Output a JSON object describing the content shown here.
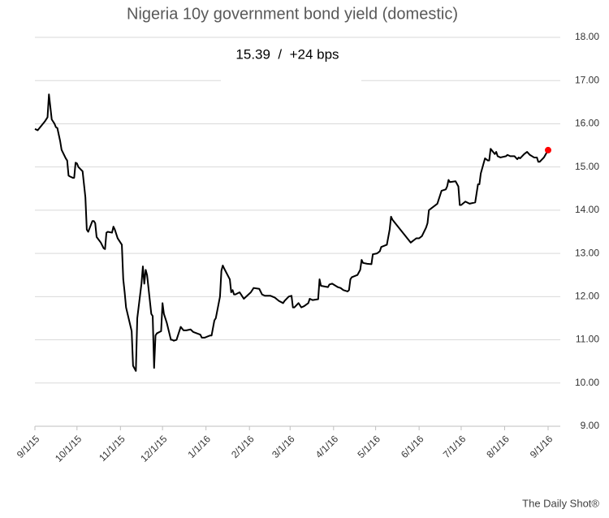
{
  "chart_data": {
    "type": "line",
    "title": "Nigeria 10y government bond yield (domestic)",
    "annotation": "15.39  /  +24 bps",
    "source": "The Daily Shot®",
    "color": "#000000",
    "highlight_last": true,
    "highlight_color": "#ff0000",
    "grid": true,
    "y_axis_side": "right",
    "xlim": [
      "2015-09-01",
      "2016-09-01"
    ],
    "xticks": [
      {
        "value": "2015-09-01",
        "label": "9/1/15"
      },
      {
        "value": "2015-10-01",
        "label": "10/1/15"
      },
      {
        "value": "2015-11-01",
        "label": "11/1/15"
      },
      {
        "value": "2015-12-01",
        "label": "12/1/15"
      },
      {
        "value": "2016-01-01",
        "label": "1/1/16"
      },
      {
        "value": "2016-02-01",
        "label": "2/1/16"
      },
      {
        "value": "2016-03-01",
        "label": "3/1/16"
      },
      {
        "value": "2016-04-01",
        "label": "4/1/16"
      },
      {
        "value": "2016-05-01",
        "label": "5/1/16"
      },
      {
        "value": "2016-06-01",
        "label": "6/1/16"
      },
      {
        "value": "2016-07-01",
        "label": "7/1/16"
      },
      {
        "value": "2016-08-01",
        "label": "8/1/16"
      },
      {
        "value": "2016-09-01",
        "label": "9/1/16"
      }
    ],
    "ylim": [
      9,
      18
    ],
    "yticks": [
      {
        "value": 9,
        "label": "9.00"
      },
      {
        "value": 10,
        "label": "10.00"
      },
      {
        "value": 11,
        "label": "11.00"
      },
      {
        "value": 12,
        "label": "12.00"
      },
      {
        "value": 13,
        "label": "13.00"
      },
      {
        "value": 14,
        "label": "14.00"
      },
      {
        "value": 15,
        "label": "15.00"
      },
      {
        "value": 16,
        "label": "16.00"
      },
      {
        "value": 17,
        "label": "17.00"
      },
      {
        "value": 18,
        "label": "18.00"
      }
    ],
    "x": [
      "2015-09-01",
      "2015-09-03",
      "2015-09-08",
      "2015-09-10",
      "2015-09-11",
      "2015-09-13",
      "2015-09-15",
      "2015-09-16",
      "2015-09-17",
      "2015-09-19",
      "2015-09-20",
      "2015-09-23",
      "2015-09-24",
      "2015-09-25",
      "2015-09-26",
      "2015-09-28",
      "2015-09-29",
      "2015-09-30",
      "2015-10-01",
      "2015-10-02",
      "2015-10-05",
      "2015-10-07",
      "2015-10-08",
      "2015-10-09",
      "2015-10-12",
      "2015-10-13",
      "2015-10-14",
      "2015-10-15",
      "2015-10-18",
      "2015-10-20",
      "2015-10-21",
      "2015-10-22",
      "2015-10-23",
      "2015-10-26",
      "2015-10-27",
      "2015-10-28",
      "2015-10-30",
      "2015-11-02",
      "2015-11-03",
      "2015-11-04",
      "2015-11-05",
      "2015-11-09",
      "2015-11-10",
      "2015-11-12",
      "2015-11-13",
      "2015-11-16",
      "2015-11-17",
      "2015-11-18",
      "2015-11-19",
      "2015-11-20",
      "2015-11-23",
      "2015-11-24",
      "2015-11-25",
      "2015-11-26",
      "2015-11-27",
      "2015-11-30",
      "2015-12-01",
      "2015-12-02",
      "2015-12-04",
      "2015-12-07",
      "2015-12-08",
      "2015-12-09",
      "2015-12-11",
      "2015-12-14",
      "2015-12-16",
      "2015-12-18",
      "2015-12-21",
      "2015-12-23",
      "2015-12-28",
      "2015-12-29",
      "2015-12-31",
      "2016-01-04",
      "2016-01-05",
      "2016-01-07",
      "2016-01-08",
      "2016-01-11",
      "2016-01-12",
      "2016-01-13",
      "2016-01-14",
      "2016-01-18",
      "2016-01-19",
      "2016-01-20",
      "2016-01-21",
      "2016-01-22",
      "2016-01-25",
      "2016-01-27",
      "2016-01-28",
      "2016-02-02",
      "2016-02-04",
      "2016-02-08",
      "2016-02-10",
      "2016-02-12",
      "2016-02-16",
      "2016-02-19",
      "2016-02-22",
      "2016-02-25",
      "2016-02-26",
      "2016-02-29",
      "2016-03-02",
      "2016-03-03",
      "2016-03-04",
      "2016-03-07",
      "2016-03-09",
      "2016-03-11",
      "2016-03-14",
      "2016-03-15",
      "2016-03-17",
      "2016-03-21",
      "2016-03-22",
      "2016-03-23",
      "2016-03-28",
      "2016-03-29",
      "2016-03-31",
      "2016-04-04",
      "2016-04-06",
      "2016-04-08",
      "2016-04-11",
      "2016-04-12",
      "2016-04-13",
      "2016-04-14",
      "2016-04-18",
      "2016-04-20",
      "2016-04-21",
      "2016-04-22",
      "2016-04-25",
      "2016-04-28",
      "2016-04-29",
      "2016-05-02",
      "2016-05-04",
      "2016-05-05",
      "2016-05-09",
      "2016-05-11",
      "2016-05-12",
      "2016-05-13",
      "2016-05-26",
      "2016-05-30",
      "2016-06-01",
      "2016-06-03",
      "2016-06-06",
      "2016-06-07",
      "2016-06-08",
      "2016-06-10",
      "2016-06-14",
      "2016-06-16",
      "2016-06-17",
      "2016-06-20",
      "2016-06-21",
      "2016-06-22",
      "2016-06-23",
      "2016-06-27",
      "2016-06-29",
      "2016-06-30",
      "2016-07-01",
      "2016-07-04",
      "2016-07-07",
      "2016-07-11",
      "2016-07-13",
      "2016-07-14",
      "2016-07-15",
      "2016-07-18",
      "2016-07-20",
      "2016-07-21",
      "2016-07-22",
      "2016-07-25",
      "2016-07-26",
      "2016-07-27",
      "2016-07-29",
      "2016-08-02",
      "2016-08-03",
      "2016-08-05",
      "2016-08-08",
      "2016-08-10",
      "2016-08-11",
      "2016-08-12",
      "2016-08-15",
      "2016-08-17",
      "2016-08-19",
      "2016-08-22",
      "2016-08-24",
      "2016-08-25",
      "2016-08-26",
      "2016-08-29",
      "2016-09-01"
    ],
    "values": [
      15.88,
      15.85,
      16.05,
      16.15,
      16.68,
      16.1,
      16.0,
      15.92,
      15.9,
      15.6,
      15.4,
      15.2,
      15.15,
      14.8,
      14.78,
      14.75,
      14.75,
      15.1,
      15.08,
      15.0,
      14.9,
      14.3,
      13.55,
      13.5,
      13.75,
      13.75,
      13.7,
      13.38,
      13.25,
      13.12,
      13.1,
      13.48,
      13.5,
      13.48,
      13.62,
      13.55,
      13.35,
      13.2,
      12.4,
      12.1,
      11.75,
      11.2,
      10.4,
      10.28,
      11.5,
      12.3,
      12.7,
      12.3,
      12.62,
      12.5,
      11.6,
      11.55,
      10.35,
      11.1,
      11.15,
      11.2,
      11.85,
      11.6,
      11.4,
      11.0,
      11.0,
      10.98,
      11.0,
      11.3,
      11.22,
      11.22,
      11.24,
      11.18,
      11.12,
      11.05,
      11.05,
      11.1,
      11.1,
      11.45,
      11.5,
      12.0,
      12.6,
      12.72,
      12.65,
      12.4,
      12.1,
      12.15,
      12.05,
      12.05,
      12.1,
      12.0,
      11.95,
      12.1,
      12.2,
      12.18,
      12.05,
      12.02,
      12.02,
      11.98,
      11.9,
      11.85,
      11.9,
      12.0,
      12.02,
      11.75,
      11.75,
      11.85,
      11.75,
      11.78,
      11.85,
      11.95,
      11.92,
      11.94,
      12.4,
      12.25,
      12.22,
      12.28,
      12.3,
      12.22,
      12.2,
      12.15,
      12.12,
      12.15,
      12.4,
      12.45,
      12.5,
      12.62,
      12.85,
      12.78,
      12.76,
      12.75,
      12.98,
      13.0,
      13.05,
      13.15,
      13.2,
      13.55,
      13.85,
      13.78,
      13.25,
      13.35,
      13.35,
      13.4,
      13.6,
      13.7,
      14.0,
      14.05,
      14.15,
      14.35,
      14.45,
      14.48,
      14.55,
      14.7,
      14.65,
      14.67,
      14.55,
      14.12,
      14.12,
      14.2,
      14.15,
      14.18,
      14.6,
      14.6,
      14.85,
      15.2,
      15.15,
      15.15,
      15.42,
      15.3,
      15.35,
      15.25,
      15.22,
      15.25,
      15.28,
      15.25,
      15.25,
      15.18,
      15.22,
      15.2,
      15.3,
      15.35,
      15.28,
      15.22,
      15.22,
      15.12,
      15.12,
      15.22,
      15.39
    ]
  }
}
